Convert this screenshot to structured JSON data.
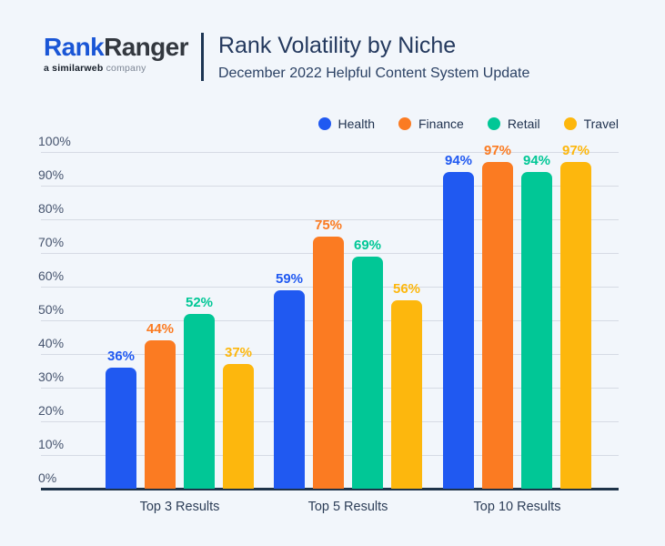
{
  "header": {
    "logo": {
      "part1": "Rank",
      "part2": "Ranger",
      "tagline_prefix": "a",
      "tagline_brand": "similarweb",
      "tagline_suffix": "company"
    },
    "title": "Rank Volatility by Niche",
    "subtitle": "December 2022 Helpful Content System Update"
  },
  "colors": {
    "background": "#f2f6fb",
    "title_text": "#24395e",
    "axis_text": "#46546e",
    "gridline": "#d6dbe4",
    "baseline": "#1e3349",
    "health": "#2059f1",
    "finance": "#fb7b22",
    "retail": "#01c796",
    "travel": "#fdb70d"
  },
  "chart_data": {
    "type": "bar",
    "title": "Rank Volatility by Niche",
    "subtitle": "December 2022 Helpful Content System Update",
    "categories": [
      "Top 3 Results",
      "Top 5 Results",
      "Top 10 Results"
    ],
    "series": [
      {
        "name": "Health",
        "color": "#2059f1",
        "values": [
          36,
          59,
          94
        ]
      },
      {
        "name": "Finance",
        "color": "#fb7b22",
        "values": [
          44,
          75,
          97
        ]
      },
      {
        "name": "Retail",
        "color": "#01c796",
        "values": [
          52,
          69,
          94
        ]
      },
      {
        "name": "Travel",
        "color": "#fdb70d",
        "values": [
          37,
          56,
          97
        ]
      }
    ],
    "value_suffix": "%",
    "xlabel": "",
    "ylabel": "",
    "ylim": [
      0,
      100
    ],
    "ytick_step": 10,
    "grid": true,
    "legend_position": "top-right"
  }
}
